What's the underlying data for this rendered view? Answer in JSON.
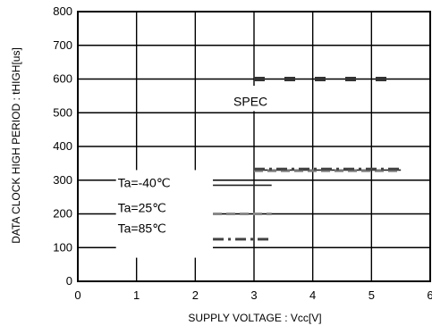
{
  "chart_data": {
    "type": "line",
    "xlabel": "SUPPLY VOLTAGE : Vcc[V]",
    "ylabel": "DATA CLOCK HIGH PERIOD : tHIGH[us]",
    "xlim": [
      0,
      6
    ],
    "ylim": [
      0,
      800
    ],
    "x_ticks": [
      "0",
      "1",
      "2",
      "3",
      "4",
      "5",
      "6"
    ],
    "y_ticks": [
      "0",
      "100",
      "200",
      "300",
      "400",
      "500",
      "600",
      "700",
      "800"
    ],
    "grid": true,
    "series": [
      {
        "name": "SPEC",
        "style": "dashed-thick",
        "color": "#333333",
        "x": [
          3.0,
          5.5
        ],
        "y": [
          600,
          600
        ]
      },
      {
        "name": "Ta=-40℃",
        "style": "solid",
        "color": "#222222",
        "x": [
          3.0,
          5.5
        ],
        "y": [
          330,
          330
        ]
      },
      {
        "name": "Ta=25℃",
        "style": "dashed",
        "color": "#777777",
        "x": [
          3.0,
          5.5
        ],
        "y": [
          328,
          328
        ]
      },
      {
        "name": "Ta=85℃",
        "style": "dashdot",
        "color": "#444444",
        "x": [
          3.0,
          5.5
        ],
        "y": [
          333,
          333
        ]
      },
      {
        "name": "Ta=-40℃ low",
        "style": "solid",
        "color": "#222222",
        "x": [
          2.3,
          3.3
        ],
        "y": [
          285,
          285
        ]
      },
      {
        "name": "Ta=25℃ low",
        "style": "dashed",
        "color": "#888888",
        "x": [
          2.3,
          3.3
        ],
        "y": [
          200,
          200
        ]
      },
      {
        "name": "Ta=85℃ low",
        "style": "dashdot",
        "color": "#444444",
        "x": [
          2.3,
          3.3
        ],
        "y": [
          125,
          125
        ]
      }
    ],
    "annotations": {
      "spec": "SPEC",
      "ta_minus40": "Ta=-40℃",
      "ta_25": "Ta=25℃",
      "ta_85": "Ta=85℃"
    }
  }
}
